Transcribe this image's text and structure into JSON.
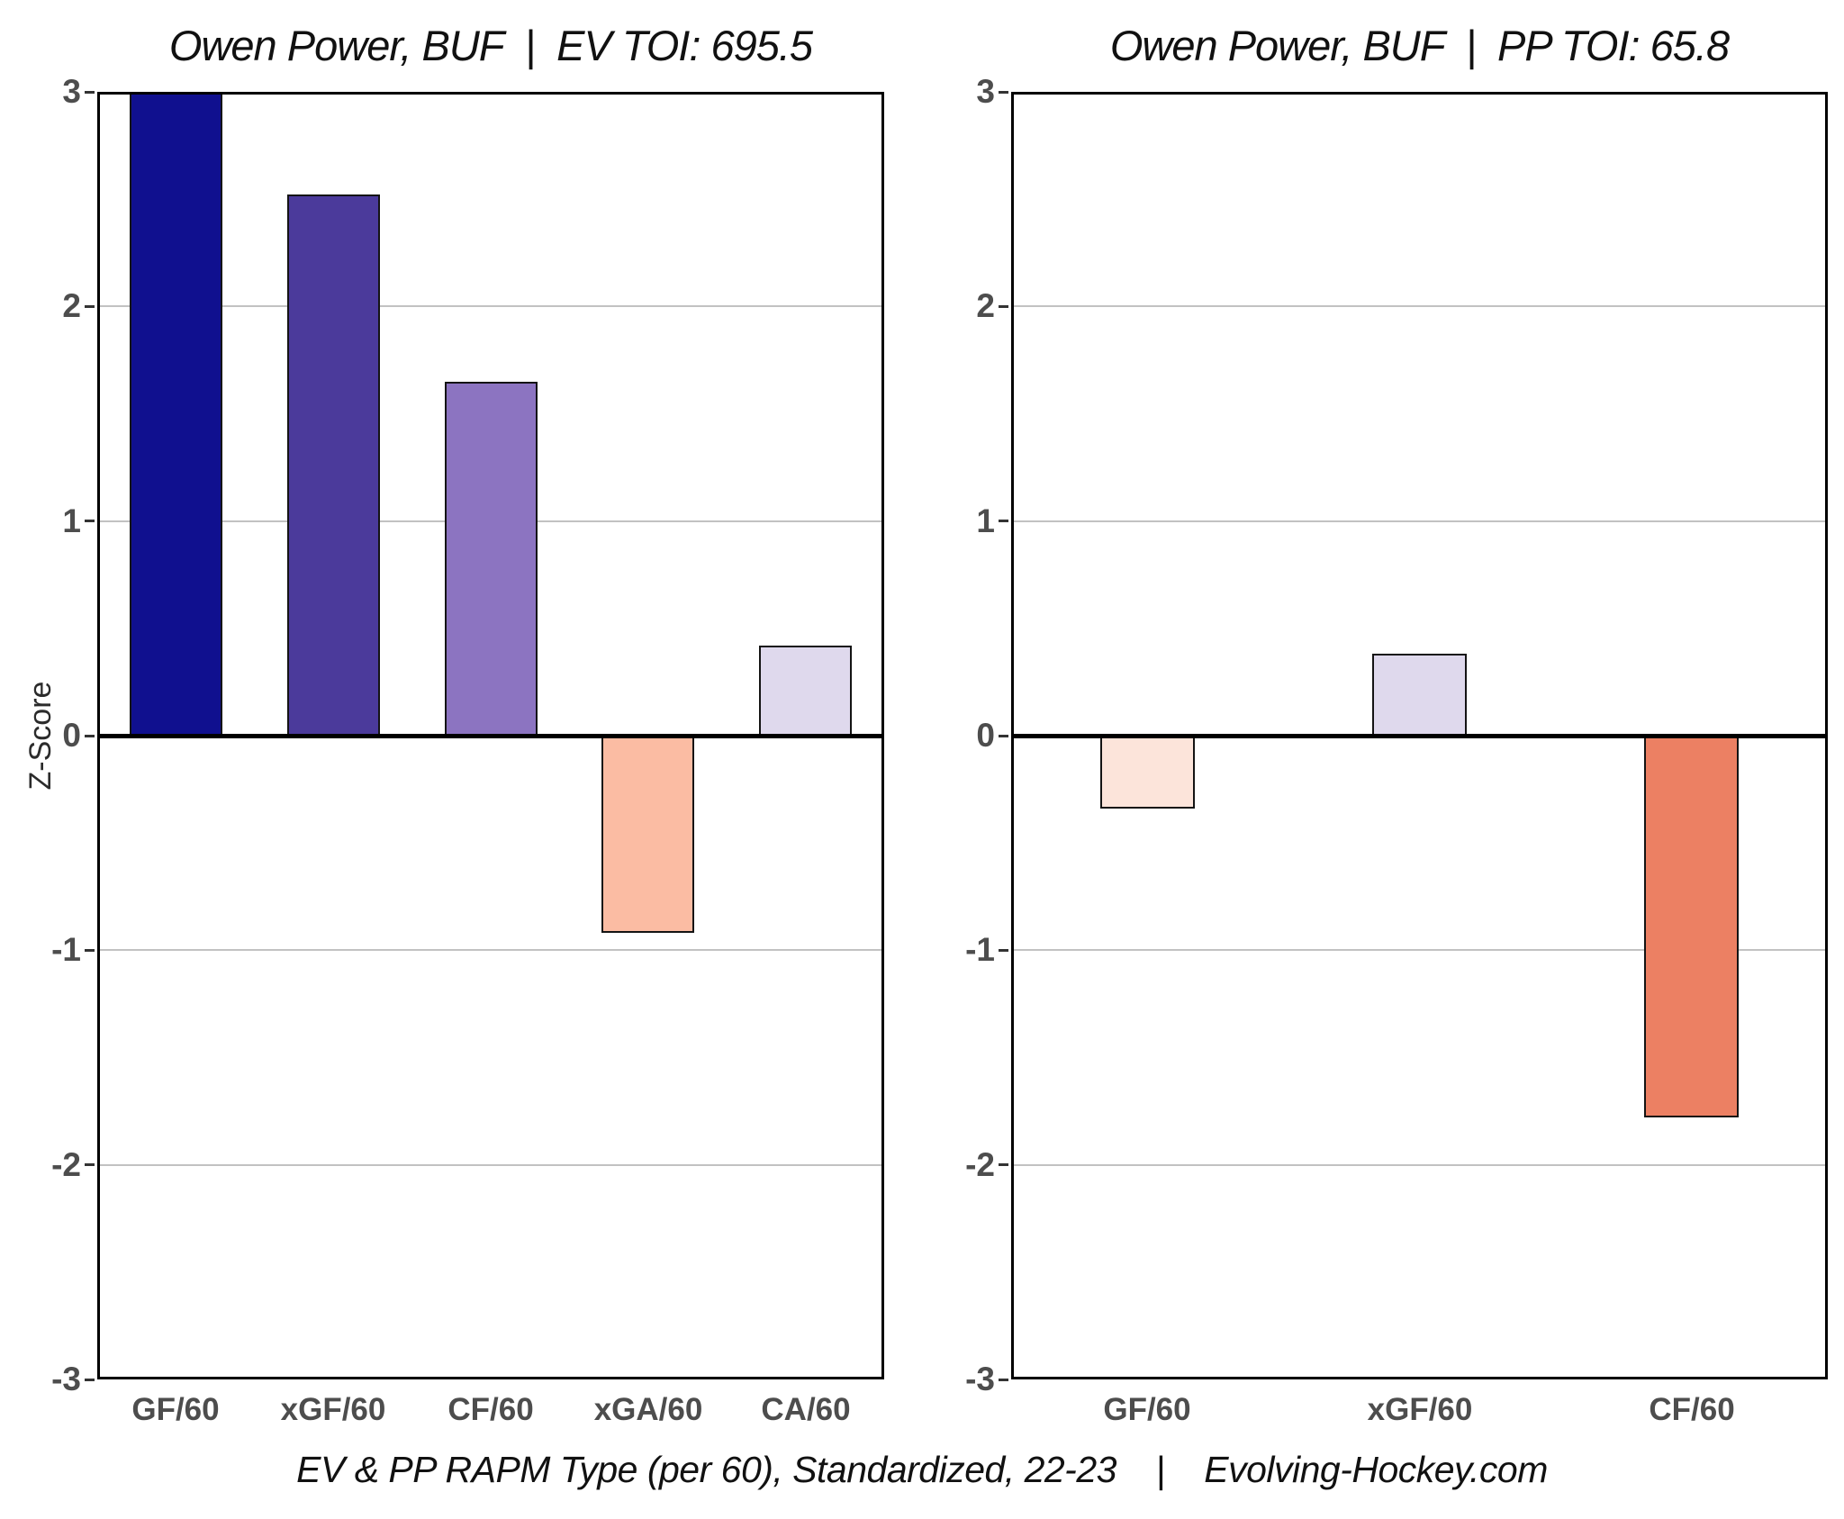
{
  "page": {
    "footer": "EV & PP RAPM Type (per 60), Standardized, 22-23    |    Evolving-Hockey.com"
  },
  "y_axis": {
    "label": "Z-Score",
    "tick_color": "#4d4d4d"
  },
  "chart_data": [
    {
      "type": "bar",
      "title": "Owen Power, BUF  |  EV TOI: 695.5",
      "categories": [
        "GF/60",
        "xGF/60",
        "CF/60",
        "xGA/60",
        "CA/60"
      ],
      "values": [
        3.0,
        2.52,
        1.65,
        -0.92,
        0.42
      ],
      "clipped_at_ymax": [
        true,
        false,
        false,
        false,
        false
      ],
      "bar_colors": [
        "#10108F",
        "#4B3A9B",
        "#8C74C1",
        "#FBBCA3",
        "#DFD9ED"
      ],
      "xlabel": "",
      "ylabel": "Z-Score",
      "ylim": [
        -3,
        3
      ],
      "yticks": [
        3,
        2,
        1,
        0,
        -1,
        -2,
        -3
      ],
      "grid": "horizontal gridlines at integer ticks, heavy line at zero",
      "legend": "none"
    },
    {
      "type": "bar",
      "title": "Owen Power, BUF  |  PP TOI: 65.8",
      "categories": [
        "GF/60",
        "xGF/60",
        "CF/60"
      ],
      "values": [
        -0.34,
        0.38,
        -1.78
      ],
      "clipped_at_ymax": [
        false,
        false,
        false
      ],
      "bar_colors": [
        "#FCE4DA",
        "#DFD9ED",
        "#EC8063"
      ],
      "xlabel": "",
      "ylabel": "",
      "ylim": [
        -3,
        3
      ],
      "yticks": [
        3,
        2,
        1,
        0,
        -1,
        -2,
        -3
      ],
      "grid": "horizontal gridlines at integer ticks, heavy line at zero",
      "legend": "none"
    }
  ]
}
